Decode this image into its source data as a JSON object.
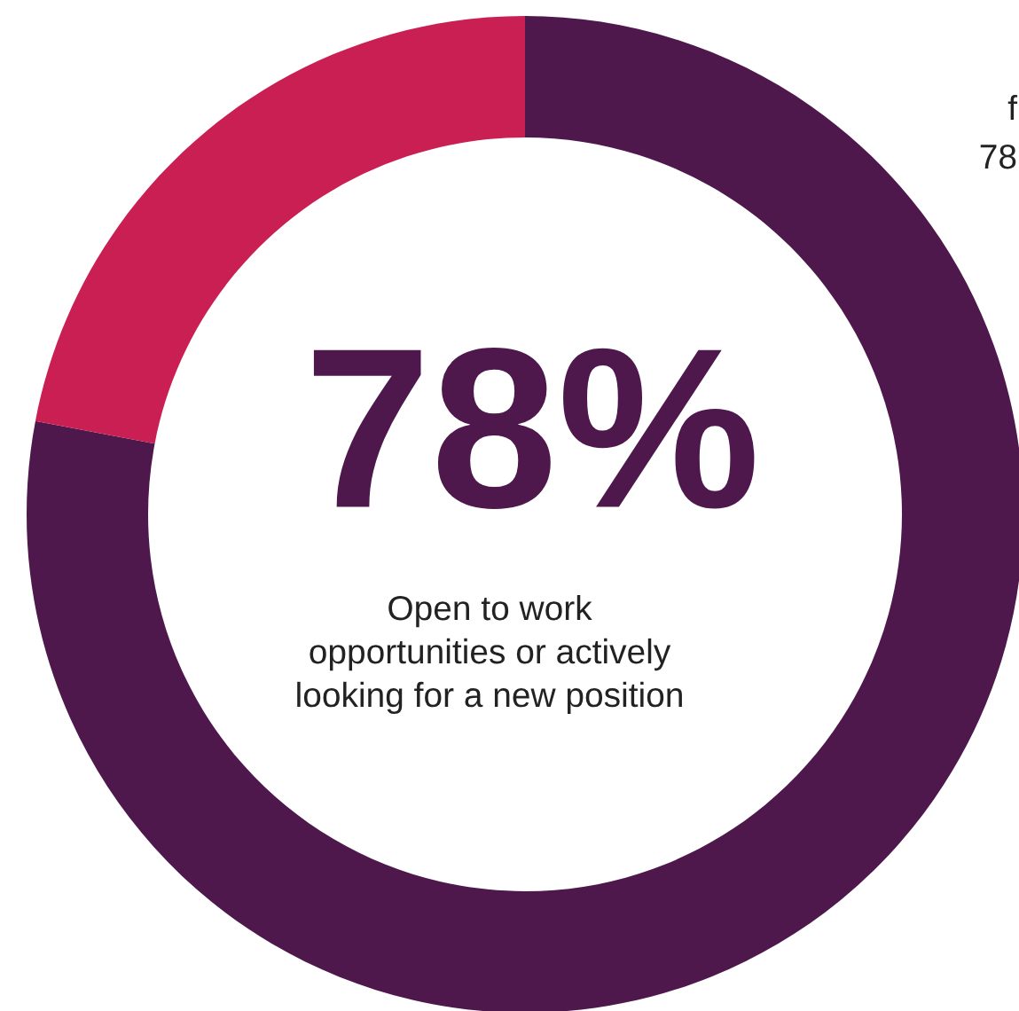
{
  "chart_data": {
    "type": "donut",
    "categories": [
      "Open to work\nopportunities or actively\nlooking for a new position",
      null
    ],
    "values": [
      78,
      22
    ],
    "colors": [
      "#4f184d",
      "#c91f52"
    ],
    "value_labels": [
      "78%",
      null
    ],
    "annotations": [
      "f",
      "78"
    ]
  }
}
